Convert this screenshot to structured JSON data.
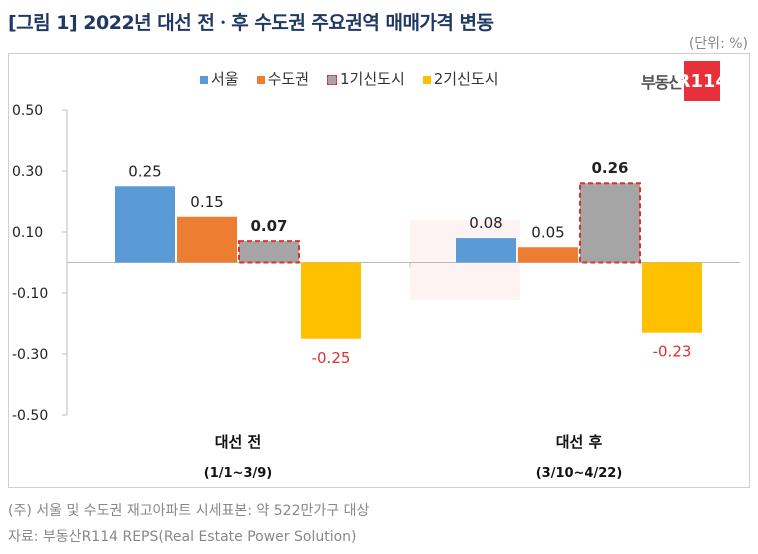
{
  "title": "[그림 1] 2022년 대선 전ㆍ후 수도권 주요권역 매매가격 변동",
  "unit": "(단위: %)",
  "logo": {
    "text": "부동산",
    "badge": "R114"
  },
  "notes": [
    "(주) 서울 및 수도권 재고아파트 시세표본: 약 522만가구 대상",
    "자료: 부동산R114 REPS(Real Estate Power Solution)"
  ],
  "colors": {
    "서울": "#5b9bd5",
    "수도권": "#ed7d31",
    "1기신도시": "#a5a5a5",
    "2기신도시": "#ffc000",
    "highlight_border": "#e03030",
    "negative_label": "#e03030"
  },
  "chart_data": {
    "type": "bar",
    "categories": [
      [
        "대선 전",
        "(1/1~3/9)"
      ],
      [
        "대선 후",
        "(3/10~4/22)"
      ]
    ],
    "series": [
      {
        "name": "서울",
        "values": [
          0.25,
          0.08
        ]
      },
      {
        "name": "수도권",
        "values": [
          0.15,
          0.05
        ]
      },
      {
        "name": "1기신도시",
        "values": [
          0.07,
          0.26
        ]
      },
      {
        "name": "2기신도시",
        "values": [
          -0.25,
          -0.23
        ]
      }
    ],
    "yticks": [
      "0.50",
      "0.30",
      "0.10",
      "-0.10",
      "-0.30",
      "-0.50"
    ],
    "ylim": [
      -0.5,
      0.5
    ],
    "legend": "top",
    "grid": false
  }
}
